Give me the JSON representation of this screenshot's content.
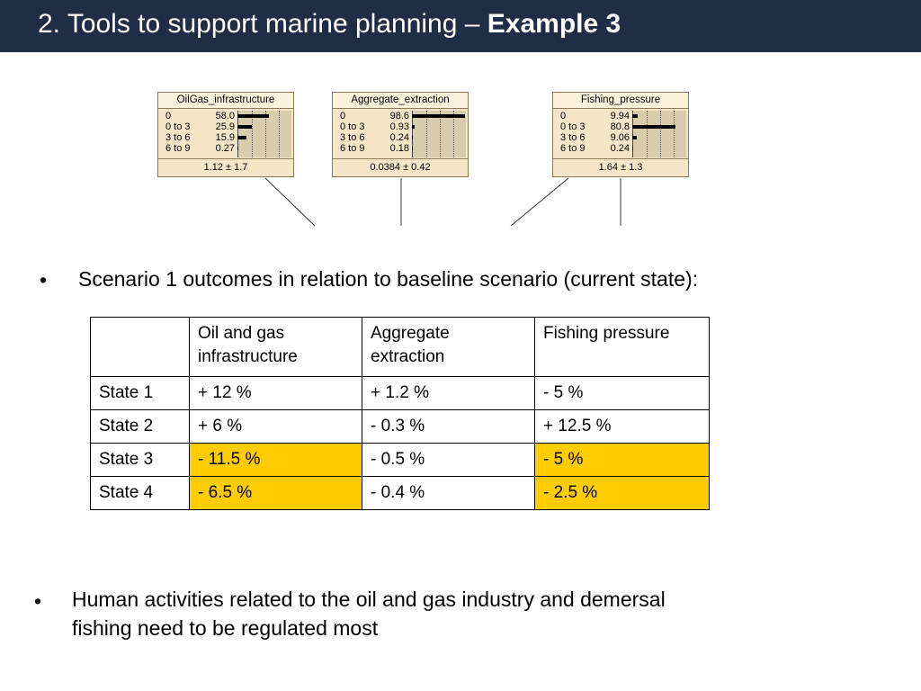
{
  "title": {
    "main": "2. Tools to support marine planning – ",
    "bold": "Example 3"
  },
  "nodes": [
    {
      "title": "OilGas_infrastructure",
      "rows": [
        {
          "label": "0",
          "value": "58.0",
          "pct": 58.0
        },
        {
          "label": "0 to 3",
          "value": "25.9",
          "pct": 25.9
        },
        {
          "label": "3 to 6",
          "value": "15.9",
          "pct": 15.9
        },
        {
          "label": "6 to 9",
          "value": "0.27",
          "pct": 0.27
        }
      ],
      "summary": "1.12 ± 1.7"
    },
    {
      "title": "Aggregate_extraction",
      "rows": [
        {
          "label": "0",
          "value": "98.6",
          "pct": 98.6
        },
        {
          "label": "0 to 3",
          "value": "0.93",
          "pct": 0.93
        },
        {
          "label": "3 to 6",
          "value": "0.24",
          "pct": 0.24
        },
        {
          "label": "6 to 9",
          "value": "0.18",
          "pct": 0.18
        }
      ],
      "summary": "0.0384 ± 0.42"
    },
    {
      "title": "Fishing_pressure",
      "rows": [
        {
          "label": "0",
          "value": "9.94",
          "pct": 9.94
        },
        {
          "label": "0 to 3",
          "value": "80.8",
          "pct": 80.8
        },
        {
          "label": "3 to 6",
          "value": "9.06",
          "pct": 9.06
        },
        {
          "label": "6 to 9",
          "value": "0.24",
          "pct": 0.24
        }
      ],
      "summary": "1.64 ± 1.3"
    }
  ],
  "bullets": {
    "first": "Scenario 1 outcomes in relation to baseline scenario (current state):",
    "second_line1": "Human activities related to the oil and gas industry and demersal",
    "second_line2": "fishing need to be regulated most",
    "dot": "•"
  },
  "table": {
    "header": [
      "",
      "Oil and gas infrastructure",
      "Aggregate extraction",
      "Fishing pressure"
    ],
    "rows": [
      {
        "state": "State 1",
        "oil": "+ 12 %",
        "agg": "+ 1.2 %",
        "fish": "- 5 %",
        "hl_oil": false,
        "hl_fish": false
      },
      {
        "state": "State 2",
        "oil": "+ 6 %",
        "agg": "- 0.3 %",
        "fish": "+ 12.5 %",
        "hl_oil": false,
        "hl_fish": false
      },
      {
        "state": "State 3",
        "oil": "- 11.5 %",
        "agg": "- 0.5 %",
        "fish": "- 5 %",
        "hl_oil": true,
        "hl_fish": true
      },
      {
        "state": "State 4",
        "oil": "- 6.5 %",
        "agg": "- 0.4 %",
        "fish": "- 2.5 %",
        "hl_oil": true,
        "hl_fish": true
      }
    ]
  },
  "colors": {
    "title_bar": "#1f2d45",
    "highlight": "#ffcc00",
    "node_bg": "#f5e6c8"
  }
}
